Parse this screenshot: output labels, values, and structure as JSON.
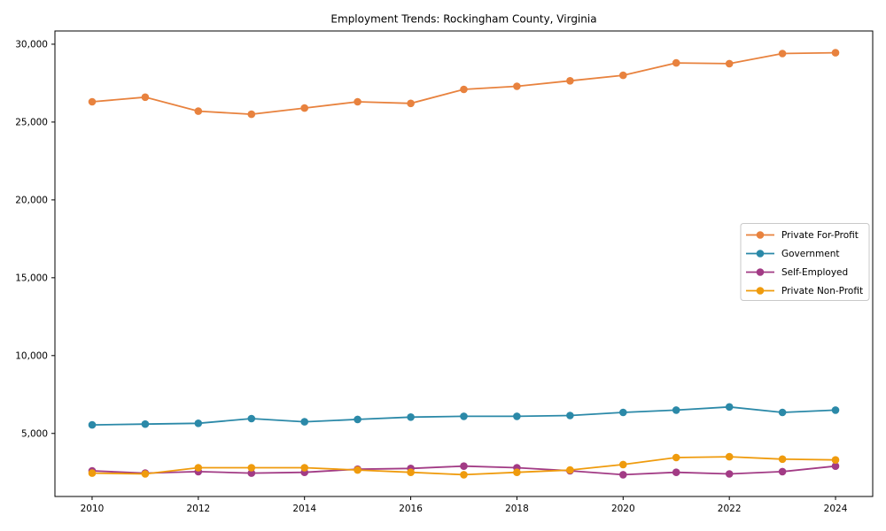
{
  "figure": {
    "background": "#ffffff",
    "axis_color": "#000000",
    "text_color": "#000000",
    "legend_border_color": "#c9c9c9"
  },
  "chart_data": {
    "type": "line",
    "title": "Employment Trends: Rockingham County, Virginia",
    "xlabel": "",
    "ylabel": "",
    "x": [
      2010,
      2011,
      2012,
      2013,
      2014,
      2015,
      2016,
      2017,
      2018,
      2019,
      2020,
      2021,
      2022,
      2023,
      2024
    ],
    "xticks": [
      2010,
      2012,
      2014,
      2016,
      2018,
      2020,
      2022,
      2024
    ],
    "xtick_labels": [
      "2010",
      "2012",
      "2014",
      "2016",
      "2018",
      "2020",
      "2022",
      "2024"
    ],
    "yticks": [
      5000,
      10000,
      15000,
      20000,
      25000,
      30000
    ],
    "ytick_labels": [
      "5,000",
      "10,000",
      "15,000",
      "20,000",
      "25,000",
      "30,000"
    ],
    "xlim": [
      2009.3,
      2024.7
    ],
    "ylim": [
      950,
      30850
    ],
    "grid": false,
    "legend_position": "center-right",
    "series": [
      {
        "name": "Private For-Profit",
        "color": "#e8823e",
        "values": [
          26300,
          26600,
          25700,
          25500,
          25900,
          26300,
          26200,
          27100,
          27300,
          27650,
          28000,
          28800,
          28750,
          29400,
          29450
        ]
      },
      {
        "name": "Government",
        "color": "#2b89a8",
        "values": [
          5550,
          5600,
          5650,
          5950,
          5750,
          5900,
          6050,
          6100,
          6100,
          6150,
          6350,
          6500,
          6700,
          6350,
          6500
        ]
      },
      {
        "name": "Self-Employed",
        "color": "#a23b85",
        "values": [
          2600,
          2450,
          2550,
          2450,
          2500,
          2700,
          2750,
          2900,
          2800,
          2600,
          2350,
          2500,
          2400,
          2550,
          2900
        ]
      },
      {
        "name": "Private Non-Profit",
        "color": "#ef9b0d",
        "values": [
          2450,
          2400,
          2800,
          2800,
          2800,
          2650,
          2500,
          2350,
          2500,
          2650,
          3000,
          3450,
          3500,
          3350,
          3300
        ]
      }
    ]
  }
}
